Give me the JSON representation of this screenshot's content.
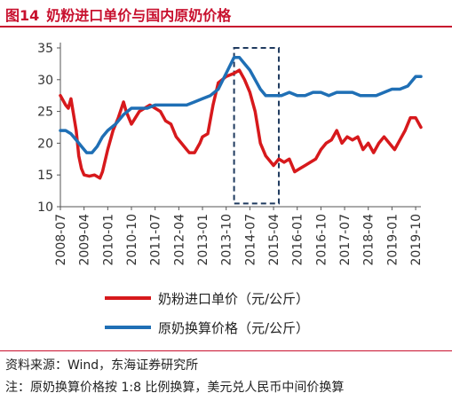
{
  "figure": {
    "number": "图14",
    "title": "奶粉进口单价与国内原奶价格"
  },
  "footer": {
    "source": "资料来源：Wind，东海证券研究所",
    "note": "注：原奶换算价格按 1:8 比例换算，美元兑人民币中间价换算"
  },
  "colors": {
    "accent": "#c8102e",
    "series_red": "#d7191c",
    "series_blue": "#1f6fb5",
    "highlight_box": "#1f3a5f"
  },
  "chart_data": {
    "type": "line",
    "title": "",
    "xlabel": "",
    "ylabel": "",
    "ylim": [
      10,
      35
    ],
    "yticks": [
      10,
      15,
      20,
      25,
      30,
      35
    ],
    "xlim": [
      "2008-07",
      "2019-12"
    ],
    "xticks": [
      "2008-07",
      "2009-04",
      "2010-01",
      "2010-10",
      "2011-07",
      "2012-04",
      "2013-01",
      "2013-10",
      "2014-07",
      "2015-04",
      "2016-01",
      "2016-10",
      "2017-07",
      "2018-04",
      "2019-01",
      "2019-10"
    ],
    "grid": false,
    "legend_position": "bottom",
    "highlight_range": {
      "x": [
        "2014-01",
        "2015-06"
      ],
      "y": [
        10.5,
        35
      ]
    },
    "series": [
      {
        "name": "奶粉进口单价（元/公斤）",
        "color_key": "series_red",
        "points": [
          [
            "2008-07",
            27.5
          ],
          [
            "2008-09",
            26
          ],
          [
            "2008-10",
            25.5
          ],
          [
            "2008-11",
            27
          ],
          [
            "2009-01",
            22
          ],
          [
            "2009-02",
            18
          ],
          [
            "2009-03",
            16
          ],
          [
            "2009-04",
            15
          ],
          [
            "2009-06",
            14.8
          ],
          [
            "2009-08",
            15
          ],
          [
            "2009-10",
            14.5
          ],
          [
            "2009-11",
            15.5
          ],
          [
            "2010-01",
            19
          ],
          [
            "2010-03",
            22
          ],
          [
            "2010-05",
            24
          ],
          [
            "2010-07",
            26.5
          ],
          [
            "2010-08",
            25
          ],
          [
            "2010-10",
            23
          ],
          [
            "2011-01",
            25
          ],
          [
            "2011-03",
            25.5
          ],
          [
            "2011-05",
            26
          ],
          [
            "2011-07",
            25.5
          ],
          [
            "2011-09",
            25
          ],
          [
            "2011-11",
            23.5
          ],
          [
            "2012-01",
            23
          ],
          [
            "2012-03",
            21
          ],
          [
            "2012-05",
            20
          ],
          [
            "2012-07",
            19
          ],
          [
            "2012-08",
            18.5
          ],
          [
            "2012-10",
            18.5
          ],
          [
            "2012-12",
            20
          ],
          [
            "2013-01",
            21
          ],
          [
            "2013-03",
            21.5
          ],
          [
            "2013-05",
            26
          ],
          [
            "2013-07",
            29.5
          ],
          [
            "2013-10",
            30.5
          ],
          [
            "2014-01",
            31
          ],
          [
            "2014-03",
            31.5
          ],
          [
            "2014-05",
            30
          ],
          [
            "2014-07",
            28
          ],
          [
            "2014-09",
            25
          ],
          [
            "2014-11",
            20
          ],
          [
            "2015-01",
            18
          ],
          [
            "2015-03",
            17
          ],
          [
            "2015-04",
            16.5
          ],
          [
            "2015-06",
            17.5
          ],
          [
            "2015-08",
            17
          ],
          [
            "2015-10",
            17.5
          ],
          [
            "2015-12",
            15.5
          ],
          [
            "2016-02",
            16
          ],
          [
            "2016-04",
            16.5
          ],
          [
            "2016-06",
            17
          ],
          [
            "2016-08",
            17.5
          ],
          [
            "2016-10",
            19
          ],
          [
            "2016-12",
            20
          ],
          [
            "2017-02",
            20.5
          ],
          [
            "2017-04",
            22
          ],
          [
            "2017-06",
            20
          ],
          [
            "2017-08",
            21
          ],
          [
            "2017-10",
            20.5
          ],
          [
            "2017-12",
            21
          ],
          [
            "2018-02",
            19
          ],
          [
            "2018-04",
            20
          ],
          [
            "2018-06",
            18.5
          ],
          [
            "2018-08",
            20
          ],
          [
            "2018-10",
            21
          ],
          [
            "2018-12",
            20
          ],
          [
            "2019-02",
            19
          ],
          [
            "2019-04",
            20.5
          ],
          [
            "2019-06",
            22
          ],
          [
            "2019-08",
            24
          ],
          [
            "2019-10",
            24
          ],
          [
            "2019-12",
            22.5
          ]
        ]
      },
      {
        "name": "原奶换算价格（元/公斤）",
        "color_key": "series_blue",
        "points": [
          [
            "2008-07",
            22
          ],
          [
            "2008-09",
            22
          ],
          [
            "2008-11",
            21.5
          ],
          [
            "2009-01",
            20.5
          ],
          [
            "2009-03",
            19.5
          ],
          [
            "2009-05",
            18.5
          ],
          [
            "2009-07",
            18.5
          ],
          [
            "2009-09",
            19.5
          ],
          [
            "2009-11",
            21
          ],
          [
            "2010-01",
            22
          ],
          [
            "2010-04",
            23
          ],
          [
            "2010-07",
            24.5
          ],
          [
            "2010-10",
            25.5
          ],
          [
            "2011-01",
            25.5
          ],
          [
            "2011-04",
            25.5
          ],
          [
            "2011-07",
            26
          ],
          [
            "2011-10",
            26
          ],
          [
            "2012-01",
            26
          ],
          [
            "2012-04",
            26
          ],
          [
            "2012-07",
            26
          ],
          [
            "2012-10",
            26.5
          ],
          [
            "2013-01",
            27
          ],
          [
            "2013-04",
            27.5
          ],
          [
            "2013-07",
            28.5
          ],
          [
            "2013-10",
            31
          ],
          [
            "2014-01",
            33.5
          ],
          [
            "2014-03",
            33.5
          ],
          [
            "2014-05",
            32.5
          ],
          [
            "2014-07",
            31.5
          ],
          [
            "2014-09",
            30
          ],
          [
            "2014-11",
            28.5
          ],
          [
            "2015-01",
            27.5
          ],
          [
            "2015-04",
            27.5
          ],
          [
            "2015-07",
            27.5
          ],
          [
            "2015-10",
            28
          ],
          [
            "2016-01",
            27.5
          ],
          [
            "2016-04",
            27.5
          ],
          [
            "2016-07",
            28
          ],
          [
            "2016-10",
            28
          ],
          [
            "2017-01",
            27.5
          ],
          [
            "2017-04",
            28
          ],
          [
            "2017-07",
            28
          ],
          [
            "2017-10",
            28
          ],
          [
            "2018-01",
            27.5
          ],
          [
            "2018-04",
            27.5
          ],
          [
            "2018-07",
            27.5
          ],
          [
            "2018-10",
            28
          ],
          [
            "2019-01",
            28.5
          ],
          [
            "2019-04",
            28.5
          ],
          [
            "2019-07",
            29
          ],
          [
            "2019-10",
            30.5
          ],
          [
            "2019-12",
            30.5
          ]
        ]
      }
    ]
  }
}
